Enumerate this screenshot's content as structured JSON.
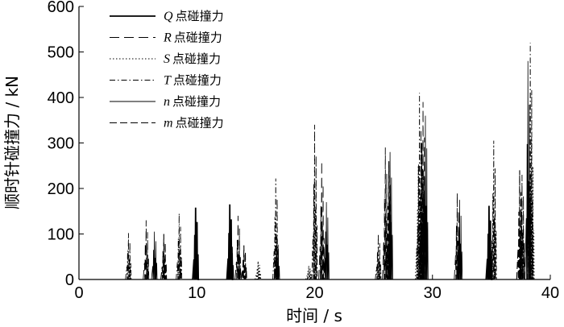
{
  "chart_data": {
    "type": "line",
    "title": "",
    "xlabel": "时间 / s",
    "ylabel": "顺时针碰撞力 / kN",
    "xlim": [
      0,
      40
    ],
    "ylim": [
      0,
      600
    ],
    "xticks": [
      "0",
      "10",
      "20",
      "30",
      "40"
    ],
    "yticks": [
      "0",
      "100",
      "200",
      "300",
      "400",
      "500",
      "600"
    ],
    "grid": false,
    "legend_position": "top-left",
    "series": [
      {
        "name": "Q 点碰撞力",
        "var": "Q",
        "suffix": "点碰撞力",
        "style": "solid-bold",
        "impacts": [
          [
            9.9,
            158
          ],
          [
            12.8,
            165
          ],
          [
            34.8,
            162
          ]
        ]
      },
      {
        "name": "R 点碰撞力",
        "var": "R",
        "suffix": "点碰撞力",
        "style": "long-dash",
        "impacts": [
          [
            5.7,
            130
          ],
          [
            13.5,
            140
          ],
          [
            20.6,
            260
          ],
          [
            26.0,
            290
          ],
          [
            29.2,
            390
          ],
          [
            32.1,
            190
          ],
          [
            37.6,
            230
          ]
        ]
      },
      {
        "name": "S 点碰撞力",
        "var": "S",
        "suffix": "点碰撞力",
        "style": "dotted",
        "impacts": [
          [
            15.2,
            40
          ],
          [
            19.5,
            30
          ],
          [
            28.8,
            250
          ],
          [
            38.4,
            310
          ]
        ]
      },
      {
        "name": "T 点碰撞力",
        "var": "T",
        "suffix": "点碰撞力",
        "style": "dash-dot",
        "impacts": [
          [
            4.2,
            102
          ],
          [
            8.5,
            145
          ],
          [
            16.7,
            222
          ],
          [
            20.0,
            340
          ],
          [
            25.4,
            100
          ],
          [
            28.9,
            410
          ],
          [
            35.2,
            305
          ],
          [
            38.3,
            520
          ]
        ]
      },
      {
        "name": "n 点碰撞力",
        "var": "n",
        "suffix": "点碰撞力",
        "style": "solid-thin",
        "impacts": [
          [
            6.4,
            105
          ],
          [
            12.9,
            90
          ],
          [
            16.8,
            85
          ],
          [
            21.0,
            170
          ],
          [
            26.4,
            280
          ],
          [
            29.4,
            360
          ],
          [
            32.3,
            175
          ],
          [
            38.1,
            480
          ]
        ]
      },
      {
        "name": "m 点碰撞力",
        "var": "m",
        "suffix": "点碰撞力",
        "style": "dashed",
        "impacts": [
          [
            7.2,
            100
          ],
          [
            14.0,
            75
          ],
          [
            26.3,
            260
          ],
          [
            29.1,
            300
          ],
          [
            37.4,
            240
          ]
        ]
      }
    ]
  }
}
